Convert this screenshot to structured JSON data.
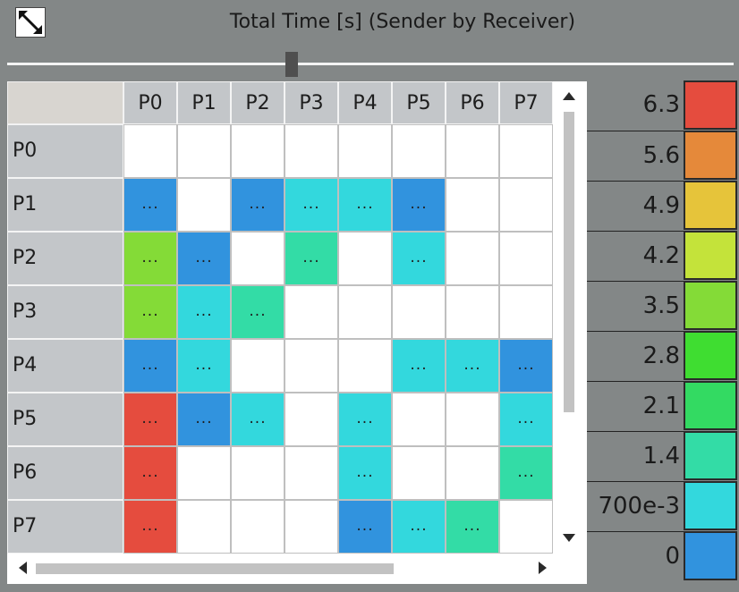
{
  "window": {
    "title": "Total Time [s] (Sender by Receiver)"
  },
  "matrix": {
    "columns": [
      "P0",
      "P1",
      "P2",
      "P3",
      "P4",
      "P5",
      "P6",
      "P7"
    ],
    "rows": [
      "P0",
      "P1",
      "P2",
      "P3",
      "P4",
      "P5",
      "P6",
      "P7"
    ],
    "cell_text": "...",
    "cells": [
      [
        null,
        null,
        null,
        null,
        null,
        null,
        null,
        null
      ],
      [
        "blue",
        null,
        "blue",
        "cyan",
        "cyan",
        "blue",
        null,
        null
      ],
      [
        "green",
        "blue",
        null,
        "teal",
        null,
        "cyan",
        null,
        null
      ],
      [
        "green",
        "cyan",
        "teal",
        null,
        null,
        null,
        null,
        null
      ],
      [
        "blue",
        "cyan",
        null,
        null,
        null,
        "cyan",
        "cyan",
        "blue"
      ],
      [
        "red",
        "blue",
        "cyan",
        null,
        "cyan",
        null,
        null,
        "cyan"
      ],
      [
        "red",
        null,
        null,
        null,
        "cyan",
        null,
        null,
        "teal"
      ],
      [
        "red",
        null,
        null,
        null,
        "blue",
        "cyan",
        "teal",
        null
      ]
    ]
  },
  "colors": {
    "blue": "#3193de",
    "cyan": "#33d8dd",
    "teal": "#33dca6",
    "green": "#84db37",
    "red": "#e54c3e"
  },
  "legend": [
    {
      "label": "6.3",
      "color": "#e54c3e"
    },
    {
      "label": "5.6",
      "color": "#e5893a"
    },
    {
      "label": "4.9",
      "color": "#e6c43a"
    },
    {
      "label": "4.2",
      "color": "#c4e33a"
    },
    {
      "label": "3.5",
      "color": "#84db37"
    },
    {
      "label": "2.8",
      "color": "#3fdd31"
    },
    {
      "label": "2.1",
      "color": "#33da62"
    },
    {
      "label": "1.4",
      "color": "#33dca6"
    },
    {
      "label": "700e-3",
      "color": "#33d8dd"
    },
    {
      "label": "0",
      "color": "#3193de"
    }
  ],
  "slider": {
    "value": 0.395
  }
}
